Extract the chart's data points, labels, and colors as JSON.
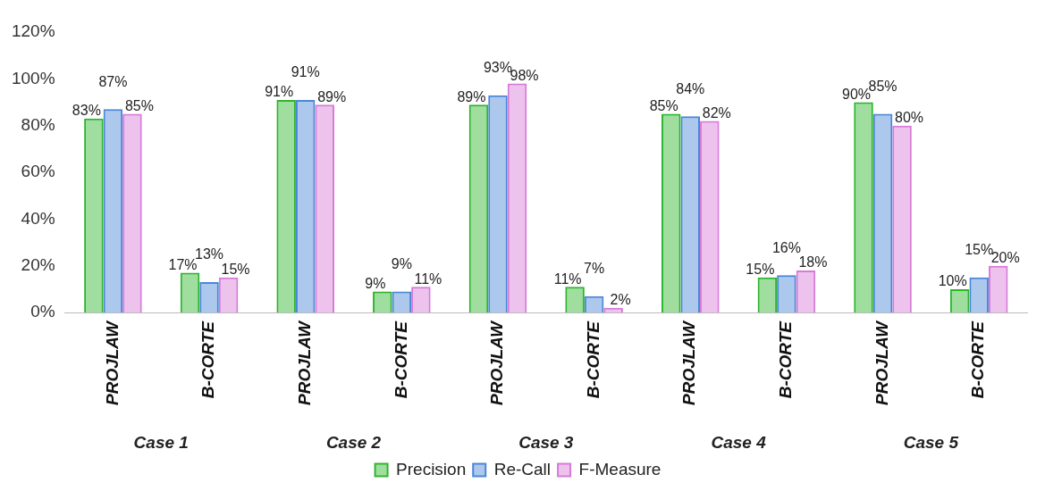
{
  "chart_data": {
    "type": "bar",
    "categories": [
      "PROJLAW",
      "B-CORTE",
      "PROJLAW",
      "B-CORTE",
      "PROJLAW",
      "B-CORTE",
      "PROJLAW",
      "B-CORTE",
      "PROJLAW",
      "B-CORTE"
    ],
    "series": [
      {
        "name": "Precision",
        "color": "#2db52d",
        "values": [
          83,
          17,
          91,
          9,
          89,
          11,
          85,
          15,
          90,
          10
        ],
        "value_labels": [
          "83%",
          "17%",
          "91%",
          "9%",
          "89%",
          "11%",
          "85%",
          "15%",
          "90%",
          "10%"
        ]
      },
      {
        "name": "Re-Call",
        "color": "#4a86d8",
        "values": [
          87,
          13,
          91,
          9,
          93,
          7,
          84,
          16,
          85,
          15
        ],
        "value_labels": [
          "87%",
          "13%",
          "91%",
          "9%",
          "93%",
          "7%",
          "84%",
          "16%",
          "85%",
          "15%"
        ]
      },
      {
        "name": "F-Measure",
        "color": "#d77ad7",
        "values": [
          85,
          15,
          89,
          11,
          98,
          2,
          82,
          18,
          80,
          20
        ],
        "value_labels": [
          "85%",
          "15%",
          "89%",
          "11%",
          "98%",
          "2%",
          "82%",
          "18%",
          "80%",
          "20%"
        ]
      }
    ],
    "ylim": [
      0,
      120
    ],
    "yticks": [
      {
        "value": 0,
        "label": "0%"
      },
      {
        "value": 20,
        "label": "20%"
      },
      {
        "value": 40,
        "label": "40%"
      },
      {
        "value": 60,
        "label": "60%"
      },
      {
        "value": 80,
        "label": "80%"
      },
      {
        "value": 100,
        "label": "100%"
      },
      {
        "value": 120,
        "label": "120%"
      }
    ],
    "annotations": [
      "Case 1",
      "Case 2",
      "Case 3",
      "Case 4",
      "Case 5"
    ],
    "grid": false,
    "legend": "bottom"
  }
}
